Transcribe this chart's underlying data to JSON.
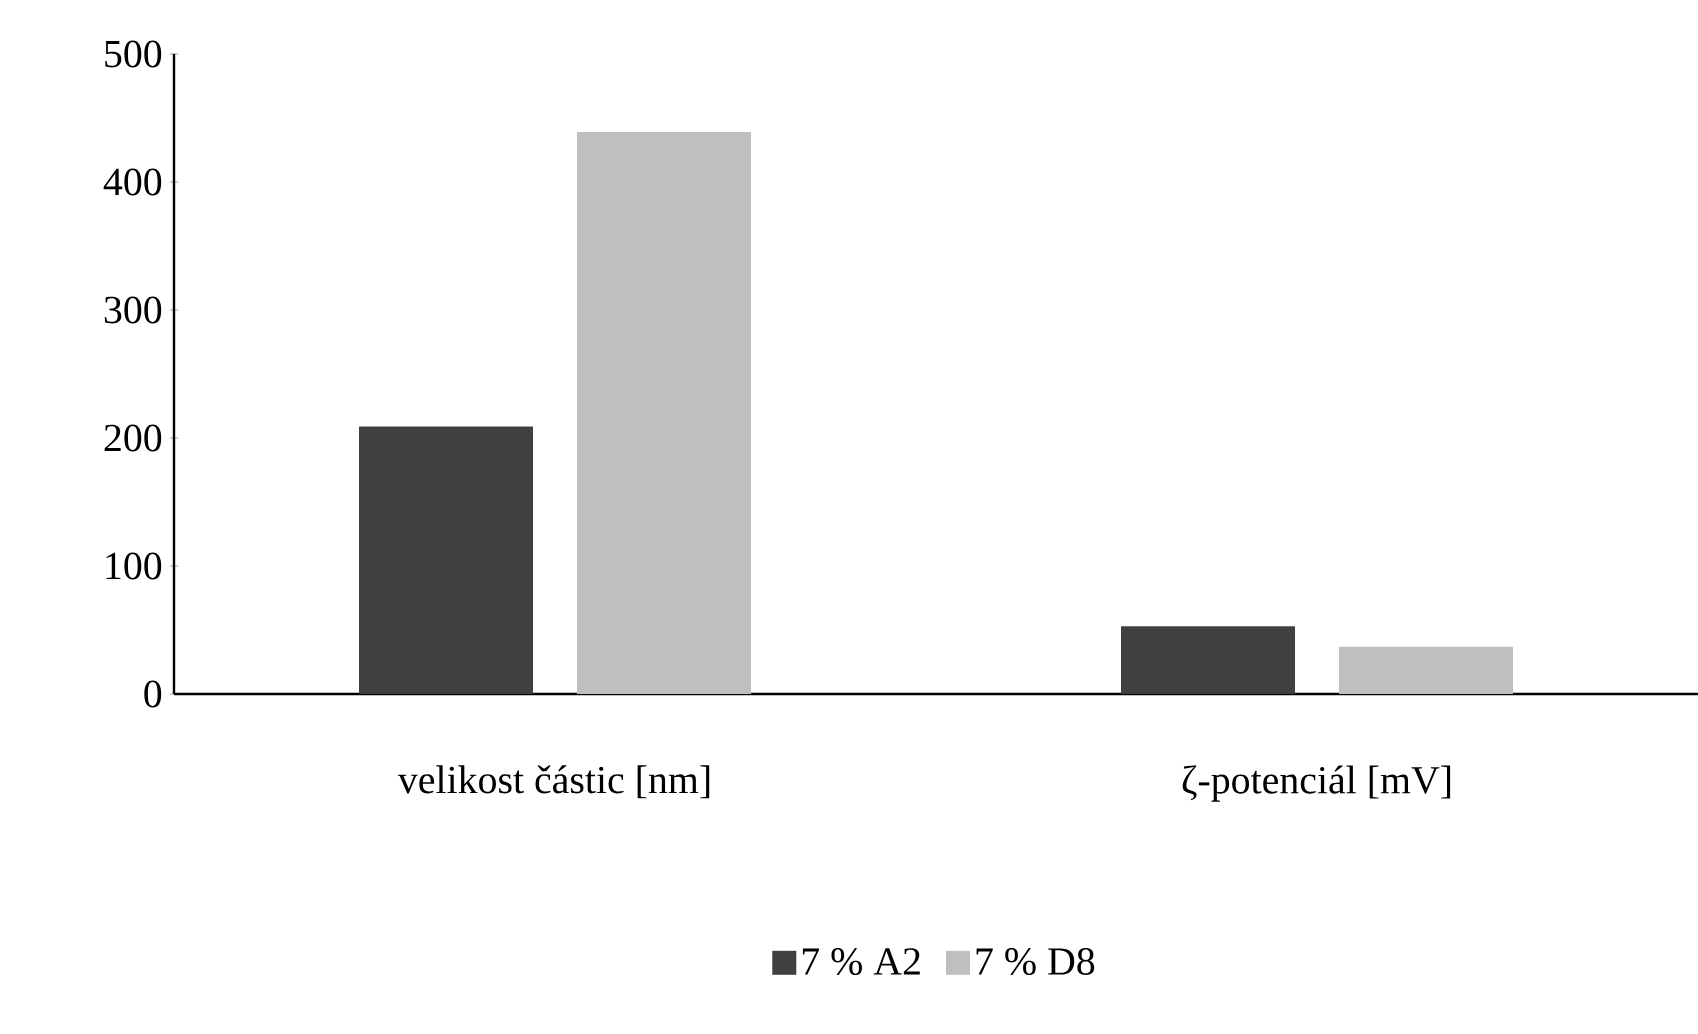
{
  "chart_data": {
    "type": "bar",
    "categories": [
      "velikost částic [nm]",
      "ζ-potenciál [mV]"
    ],
    "series": [
      {
        "name": "7 % A2",
        "color": "#404040",
        "values": [
          209,
          53
        ]
      },
      {
        "name": "7 % D8",
        "color": "#bfbfbf",
        "values": [
          439,
          37
        ]
      }
    ],
    "ylim": [
      0,
      500
    ],
    "yticks": [
      0,
      100,
      200,
      300,
      400,
      500
    ],
    "grid": false,
    "legend": "bottom"
  }
}
